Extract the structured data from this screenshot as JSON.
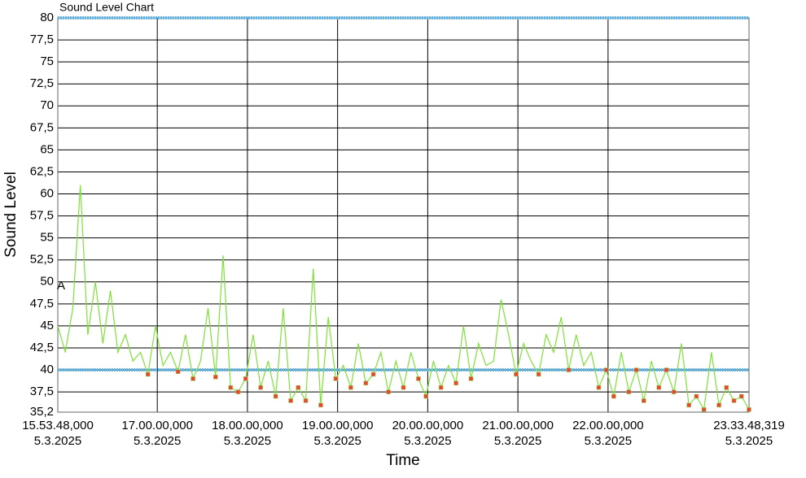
{
  "chart_data": {
    "type": "line",
    "title": "Sound Level Chart",
    "x_label": "Time",
    "y_label": "Sound Level",
    "annotation": {
      "text": "A",
      "y": 49.5
    },
    "xlim": [
      "2025-03-05T15:53:48",
      "2025-03-05T23:33:48.319"
    ],
    "xticks": [
      {
        "value": "2025-03-05T15:53:48",
        "label": "15.53.48,000\n5.3.2025"
      },
      {
        "value": "2025-03-05T17:00:00",
        "label": "17.00.00,000\n5.3.2025"
      },
      {
        "value": "2025-03-05T18:00:00",
        "label": "18.00.00,000\n5.3.2025"
      },
      {
        "value": "2025-03-05T19:00:00",
        "label": "19.00.00,000\n5.3.2025"
      },
      {
        "value": "2025-03-05T20:00:00",
        "label": "20.00.00,000\n5.3.2025"
      },
      {
        "value": "2025-03-05T21:00:00",
        "label": "21.00.00,000\n5.3.2025"
      },
      {
        "value": "2025-03-05T22:00:00",
        "label": "22.00.00,000\n5.3.2025"
      },
      {
        "value": "2025-03-05T23:33:48.319",
        "label": "23.33.48,319\n5.3.2025"
      }
    ],
    "ylim": [
      35.2,
      80
    ],
    "yticks": [
      {
        "value": 35.2,
        "label": "35,2"
      },
      {
        "value": 37.5,
        "label": "37,5"
      },
      40,
      {
        "value": 42.5,
        "label": "42,5"
      },
      45,
      {
        "value": 47.5,
        "label": "47,5"
      },
      50,
      {
        "value": 52.5,
        "label": "52,5"
      },
      55,
      {
        "value": 57.5,
        "label": "57,5"
      },
      60,
      {
        "value": 62.5,
        "label": "62,5"
      },
      65,
      {
        "value": 67.5,
        "label": "67,5"
      },
      70,
      {
        "value": 72.5,
        "label": "72,5"
      },
      75,
      {
        "value": 77.5,
        "label": "77,5"
      },
      80
    ],
    "grid": true,
    "thresholds": [
      40,
      80
    ],
    "threshold_color": "#5bb8f0",
    "marker_color": "#e8452c",
    "x": [
      "2025-03-05T15:53:48",
      "2025-03-05T15:58:48",
      "2025-03-05T16:03:48",
      "2025-03-05T16:08:48",
      "2025-03-05T16:13:48",
      "2025-03-05T16:18:48",
      "2025-03-05T16:23:48",
      "2025-03-05T16:28:48",
      "2025-03-05T16:33:48",
      "2025-03-05T16:38:48",
      "2025-03-05T16:43:48",
      "2025-03-05T16:48:48",
      "2025-03-05T16:53:48",
      "2025-03-05T16:58:48",
      "2025-03-05T17:03:48",
      "2025-03-05T17:08:48",
      "2025-03-05T17:13:48",
      "2025-03-05T17:18:48",
      "2025-03-05T17:23:48",
      "2025-03-05T17:28:48",
      "2025-03-05T17:33:48",
      "2025-03-05T17:38:48",
      "2025-03-05T17:43:48",
      "2025-03-05T17:48:48",
      "2025-03-05T17:53:48",
      "2025-03-05T17:58:48",
      "2025-03-05T18:03:48",
      "2025-03-05T18:08:48",
      "2025-03-05T18:13:48",
      "2025-03-05T18:18:48",
      "2025-03-05T18:23:48",
      "2025-03-05T18:28:48",
      "2025-03-05T18:33:48",
      "2025-03-05T18:38:48",
      "2025-03-05T18:43:48",
      "2025-03-05T18:48:48",
      "2025-03-05T18:53:48",
      "2025-03-05T18:58:48",
      "2025-03-05T19:03:48",
      "2025-03-05T19:08:48",
      "2025-03-05T19:13:48",
      "2025-03-05T19:18:48",
      "2025-03-05T19:23:48",
      "2025-03-05T19:28:48",
      "2025-03-05T19:33:48",
      "2025-03-05T19:38:48",
      "2025-03-05T19:43:48",
      "2025-03-05T19:48:48",
      "2025-03-05T19:53:48",
      "2025-03-05T19:58:48",
      "2025-03-05T20:03:48",
      "2025-03-05T20:08:48",
      "2025-03-05T20:13:48",
      "2025-03-05T20:18:48",
      "2025-03-05T20:23:48",
      "2025-03-05T20:28:48",
      "2025-03-05T20:33:48",
      "2025-03-05T20:38:48",
      "2025-03-05T20:43:48",
      "2025-03-05T20:48:48",
      "2025-03-05T20:53:48",
      "2025-03-05T20:58:48",
      "2025-03-05T21:03:48",
      "2025-03-05T21:08:48",
      "2025-03-05T21:13:48",
      "2025-03-05T21:18:48",
      "2025-03-05T21:23:48",
      "2025-03-05T21:28:48",
      "2025-03-05T21:33:48",
      "2025-03-05T21:38:48",
      "2025-03-05T21:43:48",
      "2025-03-05T21:48:48",
      "2025-03-05T21:53:48",
      "2025-03-05T21:58:48",
      "2025-03-05T22:03:48",
      "2025-03-05T22:08:48",
      "2025-03-05T22:13:48",
      "2025-03-05T22:18:48",
      "2025-03-05T22:23:48",
      "2025-03-05T22:28:48",
      "2025-03-05T22:33:48",
      "2025-03-05T22:38:48",
      "2025-03-05T22:43:48",
      "2025-03-05T22:48:48",
      "2025-03-05T22:53:48",
      "2025-03-05T22:58:48",
      "2025-03-05T23:03:48",
      "2025-03-05T23:08:48",
      "2025-03-05T23:13:48",
      "2025-03-05T23:18:48",
      "2025-03-05T23:23:48",
      "2025-03-05T23:28:48",
      "2025-03-05T23:33:48"
    ],
    "series": [
      {
        "color": "#7ee03a",
        "values": [
          45,
          42,
          47,
          61,
          44,
          50,
          43,
          49,
          42,
          44,
          41,
          42,
          39.5,
          45,
          40.5,
          42,
          39.8,
          44,
          39,
          41,
          47,
          39.2,
          53,
          38,
          37.5,
          39,
          44,
          38,
          41,
          37,
          47,
          36.5,
          38,
          36.5,
          51.5,
          36,
          46,
          39,
          40.5,
          38,
          43,
          38.5,
          39.5,
          42,
          37.5,
          41,
          38,
          42,
          39,
          37,
          41,
          38,
          40.5,
          38.5,
          45,
          39,
          43,
          40.5,
          41,
          48,
          44,
          39.5,
          43,
          41,
          39.5,
          44,
          42,
          46,
          40,
          44,
          40.5,
          42,
          38,
          40,
          37,
          42,
          37.5,
          40,
          36.5,
          41,
          38,
          40,
          37.5,
          43,
          36,
          37,
          35.5,
          42,
          36,
          38,
          36.5,
          37,
          35.5
        ]
      }
    ]
  }
}
